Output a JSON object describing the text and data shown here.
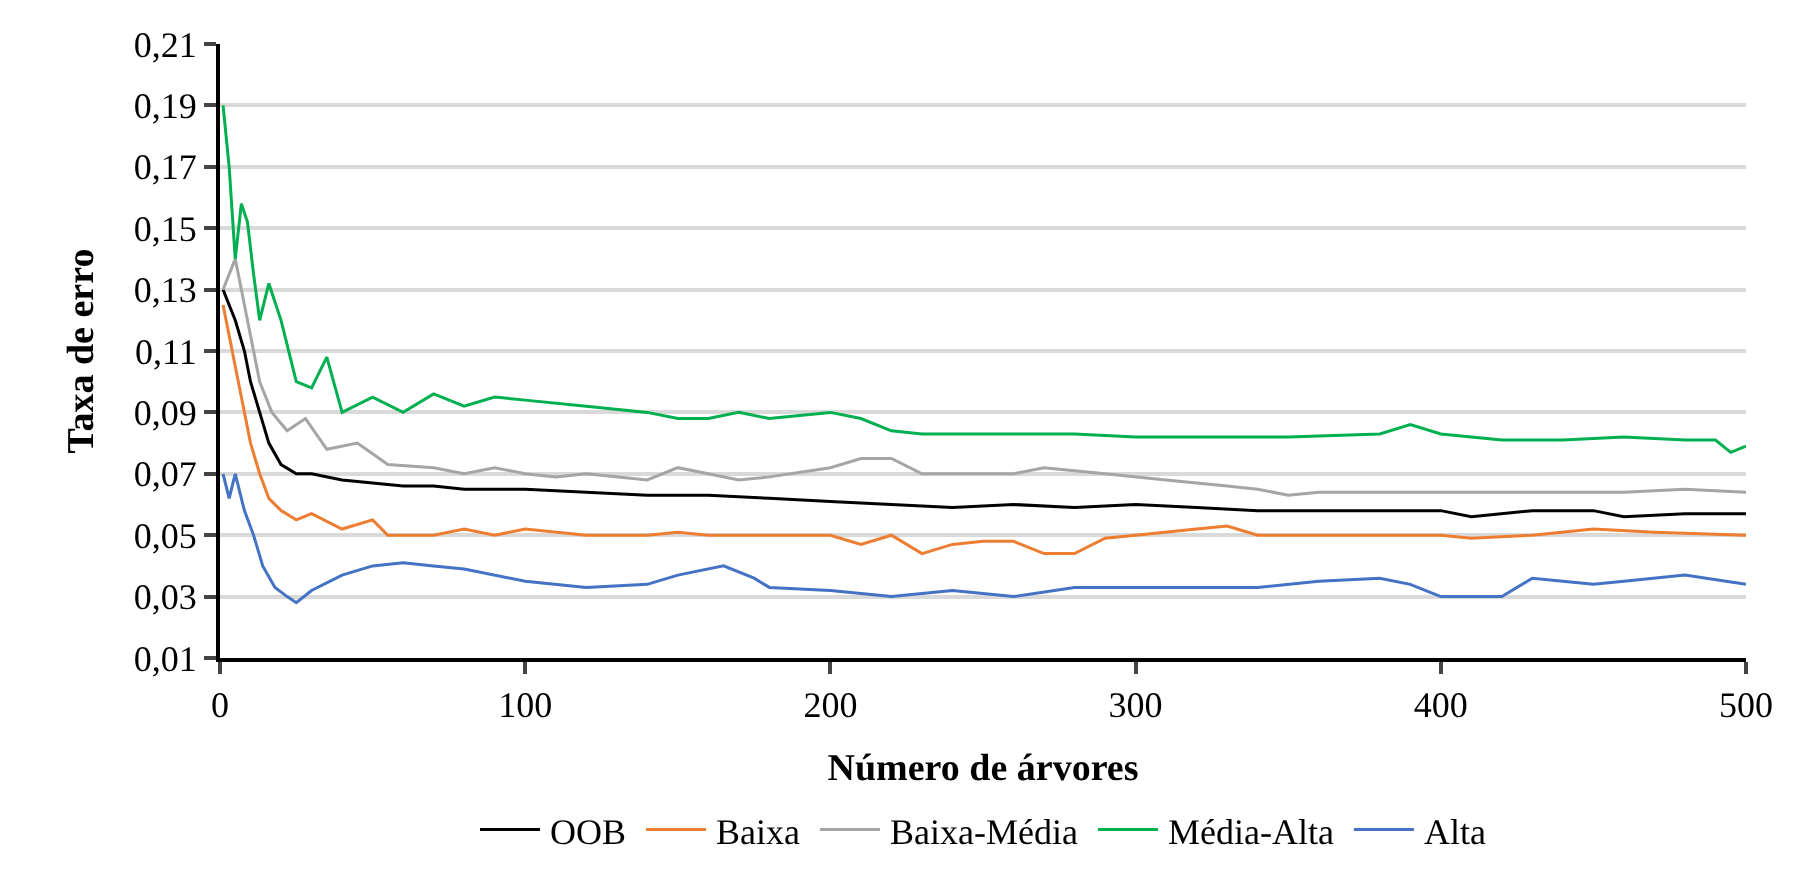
{
  "chart_data": {
    "type": "line",
    "xlabel": "Número de árvores",
    "ylabel": "Taxa de erro",
    "xlim": [
      0,
      500
    ],
    "xticks": [
      0,
      100,
      200,
      300,
      400,
      500
    ],
    "ylim": [
      0.01,
      0.21
    ],
    "yticks": [
      {
        "value": 0.01,
        "label": "0,01"
      },
      {
        "value": 0.03,
        "label": "0,03"
      },
      {
        "value": 0.05,
        "label": "0,05"
      },
      {
        "value": 0.07,
        "label": "0,07"
      },
      {
        "value": 0.09,
        "label": "0,09"
      },
      {
        "value": 0.11,
        "label": "0,11"
      },
      {
        "value": 0.13,
        "label": "0,13"
      },
      {
        "value": 0.15,
        "label": "0,15"
      },
      {
        "value": 0.17,
        "label": "0,17"
      },
      {
        "value": 0.19,
        "label": "0,19"
      },
      {
        "value": 0.21,
        "label": "0,21"
      }
    ],
    "grid": "y",
    "legend": "bottom",
    "marker": "none",
    "line_style": "solid",
    "series": [
      {
        "name": "OOB",
        "color": "#000000",
        "x": [
          1,
          3,
          5,
          8,
          10,
          13,
          16,
          20,
          25,
          30,
          40,
          50,
          60,
          70,
          80,
          100,
          120,
          140,
          160,
          180,
          200,
          220,
          240,
          260,
          280,
          300,
          320,
          340,
          360,
          380,
          400,
          410,
          430,
          450,
          460,
          480,
          500
        ],
        "values": [
          0.13,
          0.125,
          0.12,
          0.11,
          0.1,
          0.09,
          0.08,
          0.073,
          0.07,
          0.07,
          0.068,
          0.067,
          0.066,
          0.066,
          0.065,
          0.065,
          0.064,
          0.063,
          0.063,
          0.062,
          0.061,
          0.06,
          0.059,
          0.06,
          0.059,
          0.06,
          0.059,
          0.058,
          0.058,
          0.058,
          0.058,
          0.056,
          0.058,
          0.058,
          0.056,
          0.057,
          0.057
        ]
      },
      {
        "name": "Baixa",
        "color": "#ed7d31",
        "x": [
          1,
          3,
          6,
          8,
          10,
          13,
          16,
          20,
          25,
          30,
          40,
          50,
          55,
          70,
          80,
          90,
          100,
          120,
          140,
          150,
          160,
          200,
          210,
          220,
          230,
          240,
          250,
          260,
          270,
          280,
          290,
          300,
          320,
          330,
          340,
          400,
          410,
          430,
          450,
          470,
          500
        ],
        "values": [
          0.125,
          0.115,
          0.1,
          0.09,
          0.08,
          0.07,
          0.062,
          0.058,
          0.055,
          0.057,
          0.052,
          0.055,
          0.05,
          0.05,
          0.052,
          0.05,
          0.052,
          0.05,
          0.05,
          0.051,
          0.05,
          0.05,
          0.047,
          0.05,
          0.044,
          0.047,
          0.048,
          0.048,
          0.044,
          0.044,
          0.049,
          0.05,
          0.052,
          0.053,
          0.05,
          0.05,
          0.049,
          0.05,
          0.052,
          0.051,
          0.05
        ]
      },
      {
        "name": "Baixa-Média",
        "color": "#a5a5a5",
        "x": [
          1,
          5,
          8,
          10,
          13,
          17,
          22,
          28,
          35,
          45,
          55,
          70,
          80,
          90,
          100,
          110,
          120,
          140,
          150,
          160,
          170,
          180,
          200,
          210,
          220,
          230,
          260,
          270,
          290,
          310,
          330,
          340,
          350,
          360,
          380,
          400,
          420,
          440,
          460,
          480,
          500
        ],
        "values": [
          0.13,
          0.14,
          0.125,
          0.115,
          0.1,
          0.09,
          0.084,
          0.088,
          0.078,
          0.08,
          0.073,
          0.072,
          0.07,
          0.072,
          0.07,
          0.069,
          0.07,
          0.068,
          0.072,
          0.07,
          0.068,
          0.069,
          0.072,
          0.075,
          0.075,
          0.07,
          0.07,
          0.072,
          0.07,
          0.068,
          0.066,
          0.065,
          0.063,
          0.064,
          0.064,
          0.064,
          0.064,
          0.064,
          0.064,
          0.065,
          0.064
        ]
      },
      {
        "name": "Média-Alta",
        "color": "#00b050",
        "x": [
          1,
          3,
          5,
          7,
          9,
          11,
          13,
          16,
          20,
          25,
          30,
          35,
          40,
          50,
          60,
          70,
          80,
          90,
          100,
          120,
          140,
          150,
          160,
          170,
          180,
          200,
          210,
          220,
          230,
          260,
          280,
          300,
          350,
          380,
          390,
          400,
          420,
          440,
          460,
          480,
          490,
          495,
          500
        ],
        "values": [
          0.19,
          0.17,
          0.14,
          0.158,
          0.152,
          0.135,
          0.12,
          0.132,
          0.12,
          0.1,
          0.098,
          0.108,
          0.09,
          0.095,
          0.09,
          0.096,
          0.092,
          0.095,
          0.094,
          0.092,
          0.09,
          0.088,
          0.088,
          0.09,
          0.088,
          0.09,
          0.088,
          0.084,
          0.083,
          0.083,
          0.083,
          0.082,
          0.082,
          0.083,
          0.086,
          0.083,
          0.081,
          0.081,
          0.082,
          0.081,
          0.081,
          0.077,
          0.079
        ]
      },
      {
        "name": "Alta",
        "color": "#4472c4",
        "x": [
          1,
          3,
          5,
          8,
          11,
          14,
          18,
          22,
          25,
          30,
          40,
          50,
          60,
          70,
          80,
          100,
          120,
          140,
          150,
          165,
          175,
          180,
          200,
          220,
          240,
          260,
          280,
          300,
          340,
          360,
          380,
          390,
          400,
          420,
          430,
          450,
          460,
          480,
          500
        ],
        "values": [
          0.07,
          0.062,
          0.07,
          0.058,
          0.05,
          0.04,
          0.033,
          0.03,
          0.028,
          0.032,
          0.037,
          0.04,
          0.041,
          0.04,
          0.039,
          0.035,
          0.033,
          0.034,
          0.037,
          0.04,
          0.036,
          0.033,
          0.032,
          0.03,
          0.032,
          0.03,
          0.033,
          0.033,
          0.033,
          0.035,
          0.036,
          0.034,
          0.03,
          0.03,
          0.036,
          0.034,
          0.035,
          0.037,
          0.034
        ]
      }
    ]
  }
}
